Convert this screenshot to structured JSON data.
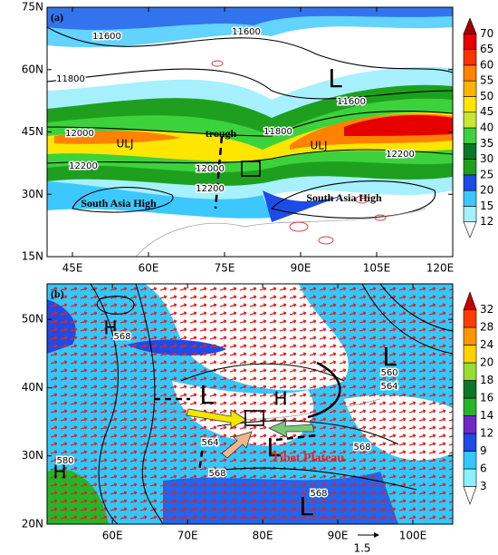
{
  "panels": [
    {
      "label": "(a)",
      "xlim": [
        40,
        120
      ],
      "xticks": [
        {
          "value": 45,
          "label": "45E"
        },
        {
          "value": 60,
          "label": "60E"
        },
        {
          "value": 75,
          "label": "75E"
        },
        {
          "value": 90,
          "label": "90E"
        },
        {
          "value": 105,
          "label": "105E"
        },
        {
          "value": 120,
          "label": "120E"
        }
      ],
      "ylim": [
        15,
        75
      ],
      "yticks": [
        {
          "value": 15,
          "label": "15N"
        },
        {
          "value": 30,
          "label": "30N"
        },
        {
          "value": 45,
          "label": "45N"
        },
        {
          "value": 60,
          "label": "60N"
        },
        {
          "value": 75,
          "label": "75N"
        }
      ],
      "colorbar": {
        "levels": [
          12,
          15,
          20,
          25,
          30,
          35,
          40,
          45,
          50,
          55,
          60,
          65,
          70
        ],
        "colors": [
          "#ffffff",
          "#a6f0ff",
          "#3cc8ff",
          "#1e4be6",
          "#1ea01e",
          "#0a7828",
          "#3cd23c",
          "#c8e632",
          "#ffe600",
          "#ffb400",
          "#ff8200",
          "#ff3200",
          "#e60000",
          "#a00000"
        ]
      },
      "annotations": [
        "11600",
        "11600",
        "11600",
        "11800",
        "11800",
        "12000",
        "12000",
        "12200",
        "12200",
        "12200",
        "L",
        "ULJ",
        "ULJ",
        "trough",
        "South Asia High",
        "South Asia High"
      ]
    },
    {
      "label": "(b)",
      "xlim": [
        51.3,
        105.3
      ],
      "xticks": [
        {
          "value": 60,
          "label": "60E"
        },
        {
          "value": 70,
          "label": "70E"
        },
        {
          "value": 80,
          "label": "80E"
        },
        {
          "value": 90,
          "label": "90E"
        },
        {
          "value": 100,
          "label": "100E"
        }
      ],
      "ylim": [
        20,
        55.2
      ],
      "yticks": [
        {
          "value": 20,
          "label": "20N"
        },
        {
          "value": 30,
          "label": "30N"
        },
        {
          "value": 40,
          "label": "40N"
        },
        {
          "value": 50,
          "label": "50N"
        }
      ],
      "colorbar": {
        "levels": [
          3,
          6,
          9,
          12,
          14,
          16,
          18,
          20,
          24,
          28,
          32
        ],
        "colors": [
          "#ffffff",
          "#8cf0ff",
          "#32c8ff",
          "#1e4be6",
          "#6e28c8",
          "#28b428",
          "#0a7828",
          "#96dc32",
          "#ffd200",
          "#ff9600",
          "#ff3c00",
          "#c80000"
        ]
      },
      "annotations": [
        "H",
        "568",
        "L",
        "560",
        "564",
        "L",
        "H",
        "564",
        "L",
        "568",
        "580",
        "H",
        "568",
        "Tibet Plateau",
        "568",
        "L",
        "1.5"
      ]
    }
  ]
}
